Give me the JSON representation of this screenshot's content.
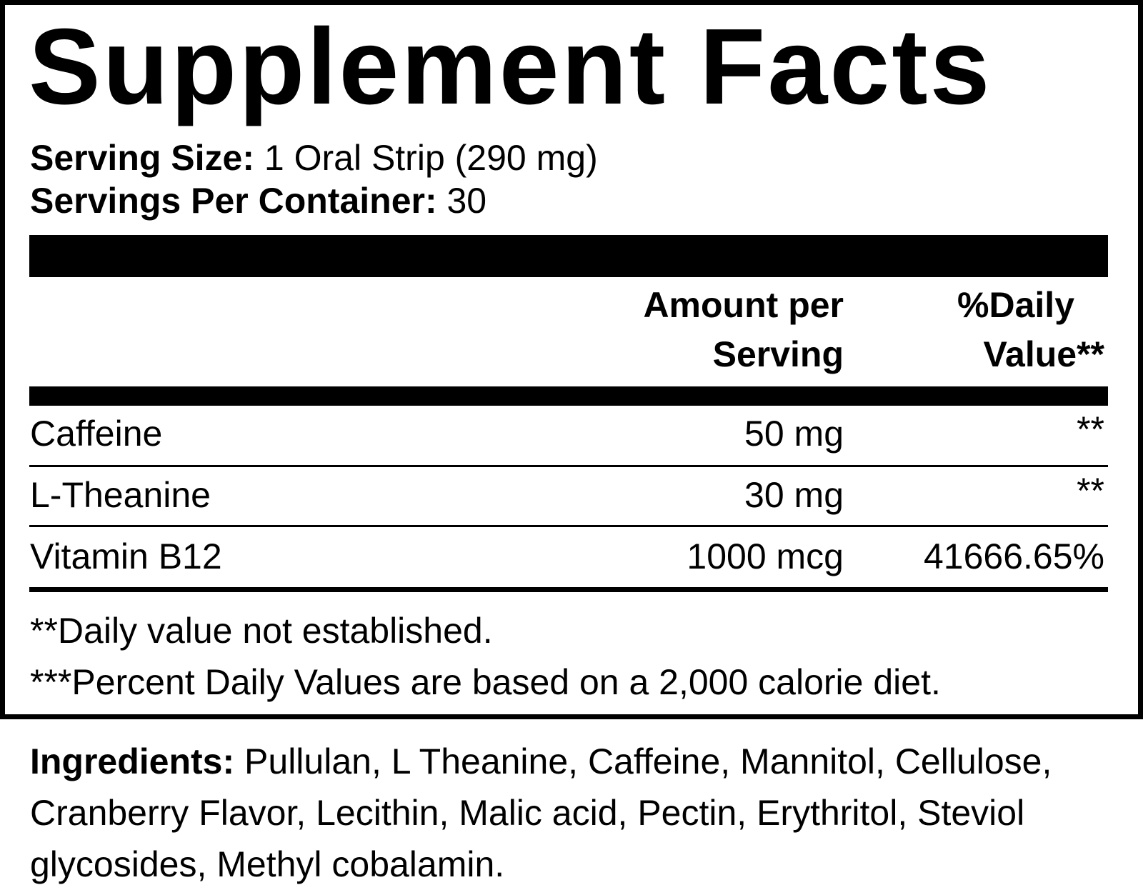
{
  "title": "Supplement Facts",
  "serving": {
    "size_label": "Serving Size:",
    "size_value": " 1 Oral Strip (290 mg)",
    "per_container_label": "Servings Per Container:",
    "per_container_value": " 30"
  },
  "table": {
    "headers": {
      "amount_line1": "Amount per",
      "amount_line2": "Serving",
      "dv_line1": "%Daily",
      "dv_line2": "Value**"
    },
    "rows": [
      {
        "name": "Caffeine",
        "amount": "50 mg",
        "dv": "**"
      },
      {
        "name": "L-Theanine",
        "amount": "30 mg",
        "dv": "**"
      },
      {
        "name": "Vitamin B12",
        "amount": "1000 mcg",
        "dv": "41666.65%"
      }
    ]
  },
  "footnotes": [
    "**Daily value not established.",
    "***Percent Daily Values are based on a 2,000 calorie diet."
  ],
  "ingredients": {
    "label": "Ingredients:",
    "text": " Pullulan, L Theanine, Caffeine, Mannitol, Cellulose, Cranberry Flavor, Lecithin, Malic acid, Pectin, Erythritol, Steviol glycosides, Methyl cobalamin."
  }
}
